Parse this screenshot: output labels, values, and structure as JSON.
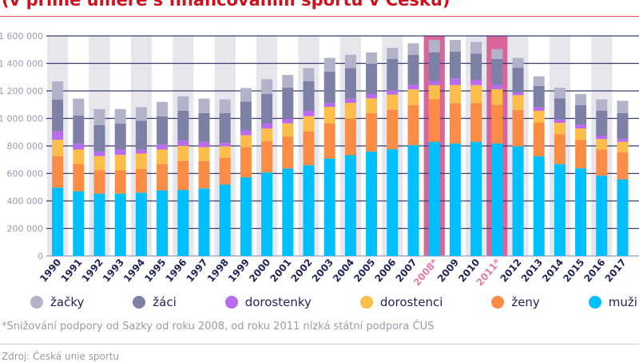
{
  "title": "(v přímé úměře s financováním sportu v Česku)",
  "footnote": "*Snižování podpory od Sazky od roku 2008, od roku 2011 nízká státní podpora ČUS",
  "source": "Zdroj: Česká unie sportu",
  "chart_data": {
    "type": "bar",
    "stacked": true,
    "categories": [
      "1990",
      "1991",
      "1992",
      "1993",
      "1994",
      "1995",
      "1996",
      "1997",
      "1998",
      "1999",
      "2000",
      "2001",
      "2002",
      "2003",
      "2004",
      "2005",
      "2006",
      "2007",
      "2008*",
      "2009",
      "2010",
      "2011*",
      "2012",
      "2013",
      "2014",
      "2015",
      "2016",
      "2017"
    ],
    "highlighted_categories": [
      "2008*",
      "2011*"
    ],
    "highlight_color": "#d9669a",
    "ylim": [
      0,
      1600000
    ],
    "yticks": [
      0,
      200000,
      400000,
      600000,
      800000,
      1000000,
      1200000,
      1400000,
      1600000
    ],
    "ytick_labels": [
      "0",
      "200 000",
      "400 000",
      "600 000",
      "800 000",
      "1 000 000",
      "1 200 000",
      "1 400 000",
      "1 600 000"
    ],
    "grid": true,
    "legend_position": "bottom",
    "series": [
      {
        "name": "muži",
        "color": "#00bfff",
        "values": [
          497000,
          470000,
          453000,
          453000,
          460000,
          476000,
          480000,
          491000,
          519000,
          571000,
          607000,
          635000,
          660000,
          708000,
          733000,
          759000,
          776000,
          805000,
          830000,
          817000,
          830000,
          817000,
          797000,
          724000,
          668000,
          637000,
          584000,
          557000
        ]
      },
      {
        "name": "ženy",
        "color": "#fb8c45",
        "values": [
          229000,
          198000,
          170000,
          170000,
          173000,
          192000,
          211000,
          200000,
          195000,
          220000,
          227000,
          232000,
          246000,
          256000,
          265000,
          280000,
          286000,
          292000,
          308000,
          294000,
          281000,
          280000,
          265000,
          244000,
          216000,
          207000,
          190000,
          196000
        ]
      },
      {
        "name": "dorostenci",
        "color": "#fdbd4a",
        "values": [
          119000,
          106000,
          103000,
          112000,
          112000,
          106000,
          110000,
          100000,
          83000,
          87000,
          93000,
          97000,
          110000,
          120000,
          115000,
          107000,
          111000,
          114000,
          104000,
          131000,
          131000,
          116000,
          107000,
          87000,
          84000,
          83000,
          76000,
          77000
        ]
      },
      {
        "name": "dorostenky",
        "color": "#b76cf0",
        "values": [
          62000,
          42000,
          33000,
          39000,
          27000,
          37000,
          39000,
          39000,
          25000,
          35000,
          35000,
          34000,
          39000,
          27000,
          31000,
          31000,
          31000,
          35000,
          31000,
          49000,
          39000,
          33000,
          19000,
          25000,
          23000,
          29000,
          25000,
          21000
        ]
      },
      {
        "name": "žáci",
        "color": "#7c80a4",
        "values": [
          229000,
          204000,
          193000,
          188000,
          211000,
          205000,
          215000,
          209000,
          217000,
          209000,
          216000,
          225000,
          216000,
          228000,
          222000,
          220000,
          228000,
          215000,
          207000,
          195000,
          190000,
          186000,
          180000,
          155000,
          155000,
          141000,
          180000,
          188000
        ]
      },
      {
        "name": "žačky",
        "color": "#b2b3c8",
        "values": [
          133000,
          124000,
          116000,
          106000,
          99000,
          104000,
          106000,
          105000,
          99000,
          99000,
          107000,
          93000,
          95000,
          101000,
          97000,
          83000,
          81000,
          85000,
          91000,
          85000,
          85000,
          72000,
          72000,
          71000,
          77000,
          81000,
          83000,
          89000
        ]
      }
    ],
    "legend_order": [
      "žačky",
      "žáci",
      "dorostenky",
      "dorostenci",
      "ženy",
      "muži"
    ]
  }
}
